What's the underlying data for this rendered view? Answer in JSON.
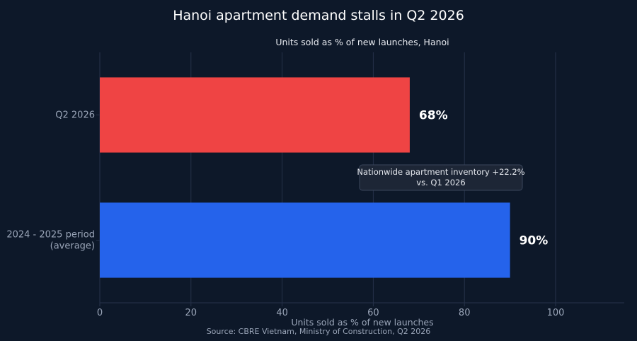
{
  "chart_data": {
    "type": "bar",
    "orientation": "horizontal",
    "title": "Hanoi apartment demand stalls in Q2 2026",
    "subtitle": "Units sold as % of new launches, Hanoi",
    "categories": [
      "Q2 2026",
      "2024 - 2025 period (average)"
    ],
    "category_lines": [
      [
        "Q2 2026"
      ],
      [
        "2024 - 2025 period",
        "(average)"
      ]
    ],
    "values": [
      68,
      90
    ],
    "value_labels": [
      "68%",
      "90%"
    ],
    "bar_colors": [
      "#ef4444",
      "#2563eb"
    ],
    "xlabel": "Units sold as % of new launches",
    "ylabel": "",
    "xlim": [
      0,
      115
    ],
    "xticks": [
      0,
      20,
      40,
      60,
      80,
      100
    ],
    "grid": true,
    "annotation": {
      "lines": [
        "Nationwide apartment inventory +22.2%",
        "vs. Q1 2026"
      ]
    },
    "source": "Source: CBRE Vietnam, Ministry of Construction, Q2 2026"
  },
  "colors": {
    "background": "#0d1829",
    "grid": "#26324a",
    "axis_text": "#9aa5b8"
  }
}
